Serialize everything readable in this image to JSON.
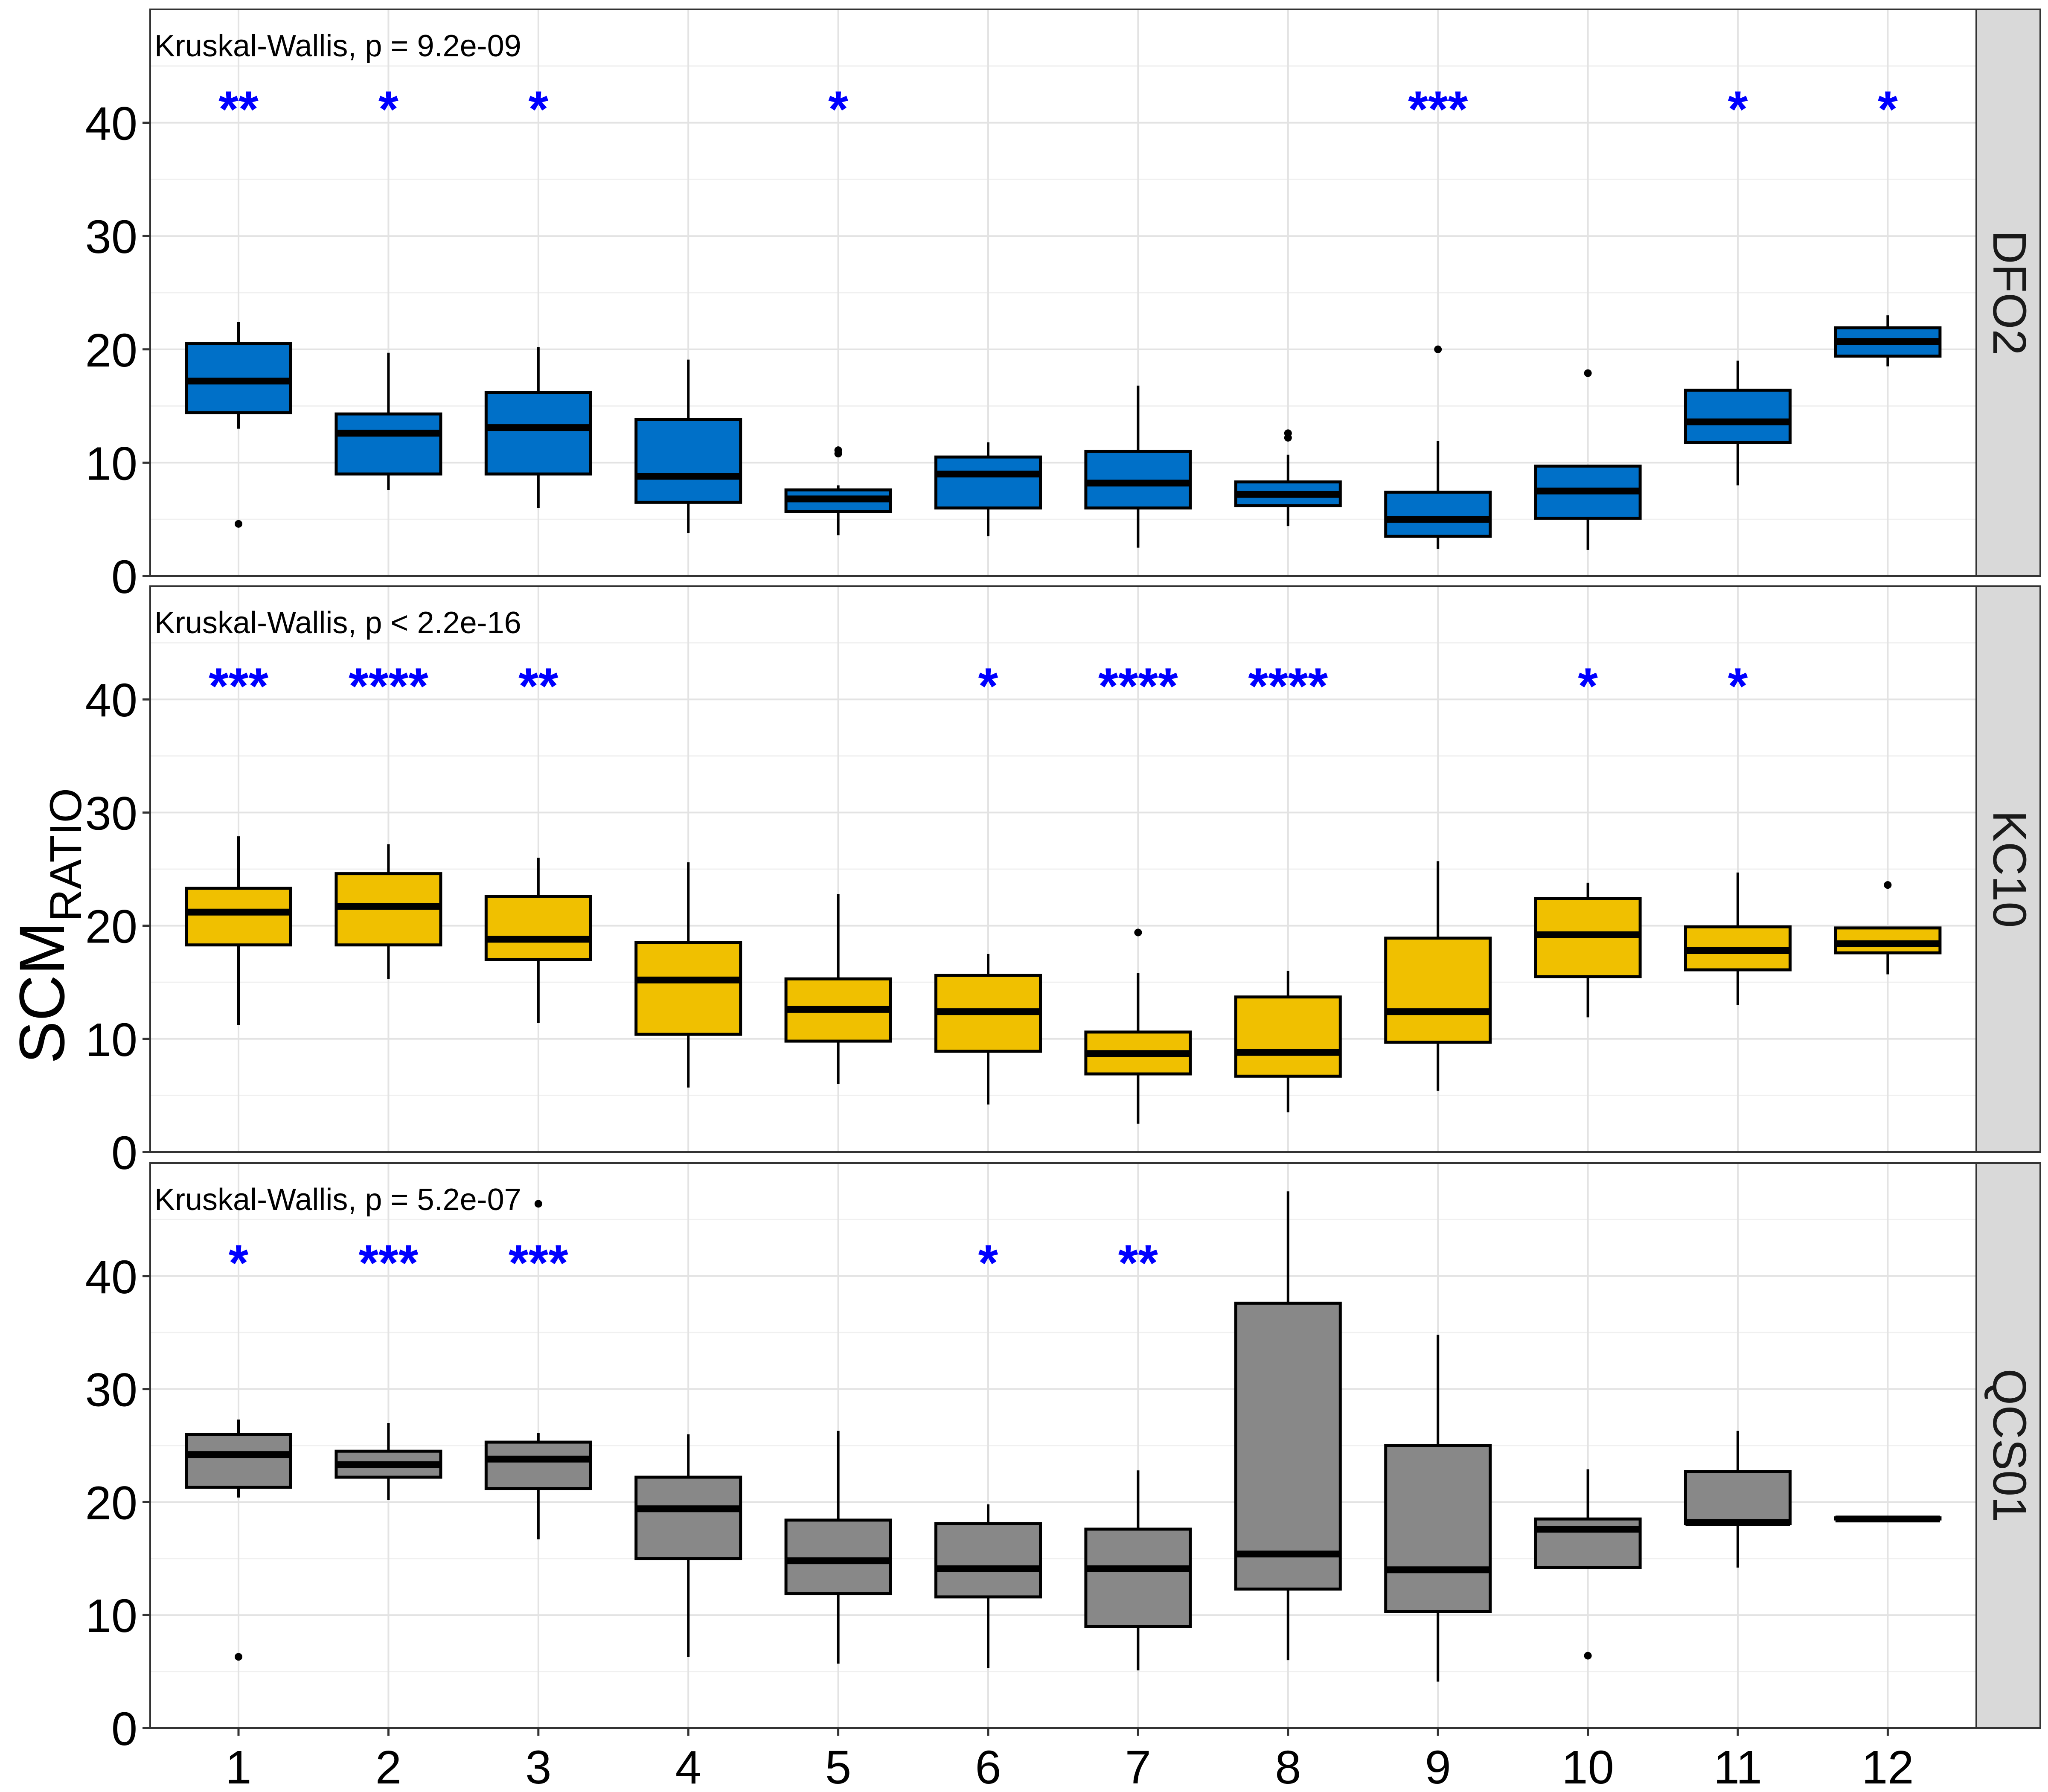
{
  "chart_data": {
    "type": "box",
    "ylabel_main": "SCM",
    "ylabel_sub": "RATIO",
    "xlabel": "",
    "categories": [
      "1",
      "2",
      "3",
      "4",
      "5",
      "6",
      "7",
      "8",
      "9",
      "10",
      "11",
      "12"
    ],
    "ylim": [
      0,
      50
    ],
    "y_ticks": [
      0,
      10,
      20,
      30,
      40
    ],
    "y_tick_labels": [
      "0",
      "10",
      "20",
      "30",
      "40"
    ],
    "grid": true,
    "sig_color": "#0000ff",
    "median_color": "#000000",
    "panels": [
      {
        "strip": "DFO2",
        "test": "Kruskal-Wallis, p = 9.2e-09",
        "fill": "#0070c8",
        "significance": [
          "**",
          "*",
          "*",
          "",
          "*",
          "",
          "",
          "",
          "***",
          "",
          "*",
          "*"
        ],
        "boxes": [
          {
            "min": 13.0,
            "q1": 14.4,
            "median": 17.2,
            "q3": 20.5,
            "max": 22.4,
            "outliers": [
              4.6
            ]
          },
          {
            "min": 7.6,
            "q1": 9.0,
            "median": 12.6,
            "q3": 14.3,
            "max": 19.7,
            "outliers": []
          },
          {
            "min": 6.0,
            "q1": 9.0,
            "median": 13.1,
            "q3": 16.2,
            "max": 20.2,
            "outliers": []
          },
          {
            "min": 3.8,
            "q1": 6.5,
            "median": 8.8,
            "q3": 13.8,
            "max": 19.1,
            "outliers": []
          },
          {
            "min": 3.6,
            "q1": 5.7,
            "median": 6.8,
            "q3": 7.6,
            "max": 8.0,
            "outliers": [
              10.8,
              11.1
            ]
          },
          {
            "min": 3.5,
            "q1": 6.0,
            "median": 9.0,
            "q3": 10.5,
            "max": 11.8,
            "outliers": []
          },
          {
            "min": 2.5,
            "q1": 6.0,
            "median": 8.2,
            "q3": 11.0,
            "max": 16.8,
            "outliers": []
          },
          {
            "min": 4.4,
            "q1": 6.2,
            "median": 7.2,
            "q3": 8.3,
            "max": 10.7,
            "outliers": [
              12.2,
              12.6
            ]
          },
          {
            "min": 2.4,
            "q1": 3.5,
            "median": 5.0,
            "q3": 7.4,
            "max": 11.9,
            "outliers": [
              20.0
            ]
          },
          {
            "min": 2.3,
            "q1": 5.1,
            "median": 7.5,
            "q3": 9.7,
            "max": 9.7,
            "outliers": [
              17.9
            ]
          },
          {
            "min": 8.0,
            "q1": 11.8,
            "median": 13.6,
            "q3": 16.4,
            "max": 19.0,
            "outliers": []
          },
          {
            "min": 18.5,
            "q1": 19.4,
            "median": 20.7,
            "q3": 21.9,
            "max": 23.0,
            "outliers": []
          }
        ]
      },
      {
        "strip": "KC10",
        "test": "Kruskal-Wallis, p < 2.2e-16",
        "fill": "#f0c000",
        "significance": [
          "***",
          "****",
          "**",
          "",
          "",
          "*",
          "****",
          "****",
          "",
          "*",
          "*",
          ""
        ],
        "boxes": [
          {
            "min": 11.2,
            "q1": 18.3,
            "median": 21.2,
            "q3": 23.3,
            "max": 27.9,
            "outliers": []
          },
          {
            "min": 15.3,
            "q1": 18.3,
            "median": 21.7,
            "q3": 24.6,
            "max": 27.2,
            "outliers": []
          },
          {
            "min": 11.4,
            "q1": 17.0,
            "median": 18.8,
            "q3": 22.6,
            "max": 26.0,
            "outliers": []
          },
          {
            "min": 5.7,
            "q1": 10.4,
            "median": 15.2,
            "q3": 18.5,
            "max": 25.6,
            "outliers": []
          },
          {
            "min": 6.0,
            "q1": 9.8,
            "median": 12.6,
            "q3": 15.3,
            "max": 22.8,
            "outliers": []
          },
          {
            "min": 4.2,
            "q1": 8.9,
            "median": 12.4,
            "q3": 15.6,
            "max": 17.5,
            "outliers": []
          },
          {
            "min": 2.5,
            "q1": 6.9,
            "median": 8.7,
            "q3": 10.6,
            "max": 15.8,
            "outliers": [
              19.4
            ]
          },
          {
            "min": 3.5,
            "q1": 6.7,
            "median": 8.8,
            "q3": 13.7,
            "max": 16.0,
            "outliers": []
          },
          {
            "min": 5.4,
            "q1": 9.7,
            "median": 12.4,
            "q3": 18.9,
            "max": 25.7,
            "outliers": []
          },
          {
            "min": 11.9,
            "q1": 15.5,
            "median": 19.2,
            "q3": 22.4,
            "max": 23.8,
            "outliers": []
          },
          {
            "min": 13.0,
            "q1": 16.1,
            "median": 17.8,
            "q3": 19.9,
            "max": 24.7,
            "outliers": []
          },
          {
            "min": 15.7,
            "q1": 17.6,
            "median": 18.4,
            "q3": 19.8,
            "max": 19.8,
            "outliers": [
              23.6
            ]
          }
        ]
      },
      {
        "strip": "QCS01",
        "test": "Kruskal-Wallis, p = 5.2e-07",
        "fill": "#888888",
        "significance": [
          "*",
          "***",
          "***",
          "",
          "",
          "*",
          "**",
          "",
          "",
          "",
          "",
          ""
        ],
        "boxes": [
          {
            "min": 20.4,
            "q1": 21.3,
            "median": 24.2,
            "q3": 26.0,
            "max": 27.3,
            "outliers": [
              6.3
            ]
          },
          {
            "min": 20.2,
            "q1": 22.2,
            "median": 23.3,
            "q3": 24.5,
            "max": 27.0,
            "outliers": []
          },
          {
            "min": 16.7,
            "q1": 21.2,
            "median": 23.8,
            "q3": 25.3,
            "max": 26.1,
            "outliers": [
              46.4
            ]
          },
          {
            "min": 6.3,
            "q1": 15.0,
            "median": 19.4,
            "q3": 22.2,
            "max": 26.0,
            "outliers": []
          },
          {
            "min": 5.7,
            "q1": 11.9,
            "median": 14.8,
            "q3": 18.4,
            "max": 26.3,
            "outliers": []
          },
          {
            "min": 5.3,
            "q1": 11.6,
            "median": 14.1,
            "q3": 18.1,
            "max": 19.8,
            "outliers": []
          },
          {
            "min": 5.1,
            "q1": 9.0,
            "median": 14.1,
            "q3": 17.6,
            "max": 22.8,
            "outliers": []
          },
          {
            "min": 6.0,
            "q1": 12.3,
            "median": 15.4,
            "q3": 37.6,
            "max": 47.5,
            "outliers": []
          },
          {
            "min": 4.1,
            "q1": 10.3,
            "median": 14.0,
            "q3": 25.0,
            "max": 34.8,
            "outliers": []
          },
          {
            "min": 14.2,
            "q1": 14.2,
            "median": 17.6,
            "q3": 18.5,
            "max": 22.9,
            "outliers": [
              6.4
            ]
          },
          {
            "min": 14.2,
            "q1": 18.1,
            "median": 18.2,
            "q3": 22.7,
            "max": 26.3,
            "outliers": []
          },
          {
            "min": 18.5,
            "q1": 18.5,
            "median": 18.5,
            "q3": 18.6,
            "max": 18.6,
            "outliers": []
          }
        ]
      }
    ]
  }
}
